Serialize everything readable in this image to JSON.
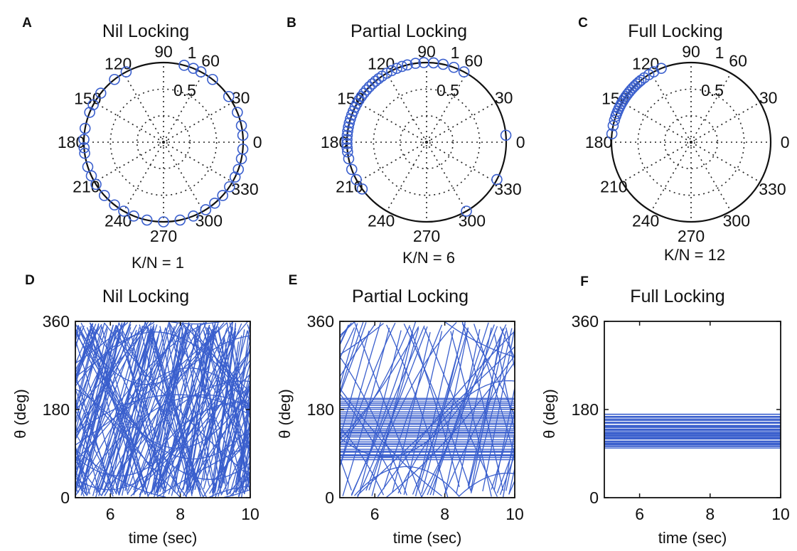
{
  "accent_color": "#3a5fcd",
  "chart_data": [
    {
      "panel": "A",
      "type": "polar-scatter",
      "title": "Nil Locking",
      "k_label": "K/N = 1",
      "angle_ticks": [
        "0",
        "30",
        "60",
        "90",
        "120",
        "150",
        "180",
        "210",
        "240",
        "270",
        "300",
        "330"
      ],
      "radius_ticks": [
        "0.5",
        "1"
      ],
      "rlim": [
        0,
        1
      ],
      "grid": true,
      "points_deg": [
        5,
        12,
        22,
        35,
        52,
        62,
        68,
        75,
        118,
        128,
        142,
        152,
        158,
        170,
        178,
        184,
        188,
        198,
        205,
        212,
        222,
        232,
        240,
        248,
        258,
        270,
        282,
        292,
        302,
        310,
        318,
        326,
        334,
        340,
        348,
        355
      ]
    },
    {
      "panel": "B",
      "type": "polar-scatter",
      "title": "Partial Locking",
      "k_label": "K/N = 6",
      "angle_ticks": [
        "0",
        "30",
        "60",
        "90",
        "120",
        "150",
        "180",
        "210",
        "240",
        "270",
        "300",
        "330"
      ],
      "radius_ticks": [
        "0.5",
        "1"
      ],
      "rlim": [
        0,
        1
      ],
      "grid": true,
      "points_deg": [
        5,
        62,
        70,
        78,
        85,
        92,
        98,
        104,
        108,
        112,
        116,
        120,
        124,
        127,
        130,
        133,
        136,
        139,
        142,
        145,
        148,
        151,
        154,
        157,
        160,
        163,
        166,
        169,
        172,
        175,
        178,
        181,
        184,
        187,
        192,
        200,
        208,
        216,
        300,
        332
      ]
    },
    {
      "panel": "C",
      "type": "polar-scatter",
      "title": "Full Locking",
      "k_label": "K/N = 12",
      "angle_ticks": [
        "0",
        "30",
        "60",
        "90",
        "120",
        "150",
        "180",
        "210",
        "240",
        "270",
        "300",
        "330"
      ],
      "radius_ticks": [
        "0.5",
        "1"
      ],
      "rlim": [
        0,
        1
      ],
      "grid": true,
      "points_deg": [
        112,
        118,
        122,
        126,
        129,
        131,
        133,
        135,
        137,
        139,
        141,
        143,
        145,
        147,
        149,
        151,
        153,
        155,
        157,
        159,
        161,
        164,
        168,
        174
      ]
    },
    {
      "panel": "D",
      "type": "line",
      "title": "Nil Locking",
      "xlabel": "time (sec)",
      "ylabel": "θ (deg)",
      "xlim": [
        5,
        10
      ],
      "ylim": [
        0,
        360
      ],
      "xticks": [
        "6",
        "8",
        "10"
      ],
      "yticks": [
        "0",
        "180",
        "360"
      ],
      "pattern": "drifting",
      "n_drift": 70,
      "n_locked": 0,
      "locked_range": null
    },
    {
      "panel": "E",
      "type": "line",
      "title": "Partial Locking",
      "xlabel": "time (sec)",
      "ylabel": "θ (deg)",
      "xlim": [
        5,
        10
      ],
      "ylim": [
        0,
        360
      ],
      "xticks": [
        "6",
        "8",
        "10"
      ],
      "yticks": [
        "0",
        "180",
        "360"
      ],
      "pattern": "partial",
      "n_drift": 22,
      "n_locked": 34,
      "locked_range": [
        75,
        205
      ]
    },
    {
      "panel": "F",
      "type": "line",
      "title": "Full Locking",
      "xlabel": "time (sec)",
      "ylabel": "θ (deg)",
      "xlim": [
        5,
        10
      ],
      "ylim": [
        0,
        360
      ],
      "xticks": [
        "6",
        "8",
        "10"
      ],
      "yticks": [
        "0",
        "180",
        "360"
      ],
      "pattern": "locked",
      "n_drift": 0,
      "n_locked": 36,
      "locked_range": [
        100,
        172
      ]
    }
  ]
}
